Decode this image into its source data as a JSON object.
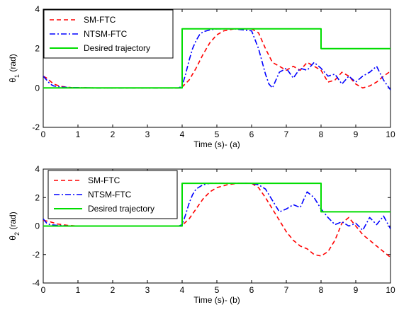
{
  "chart_data": [
    {
      "type": "line",
      "xlabel": "Time (s)- (a)",
      "ylabel": {
        "base": "θ",
        "sub": "1",
        "unit": " (rad)"
      },
      "xlim": [
        0,
        10
      ],
      "ylim": [
        -2,
        4
      ],
      "xticks": [
        0,
        1,
        2,
        3,
        4,
        5,
        6,
        7,
        8,
        9,
        10
      ],
      "yticks": [
        -2,
        0,
        2,
        4
      ],
      "legend": {
        "placement": "top-left"
      },
      "series": [
        {
          "name": "SM-FTC",
          "color": "#ff0000",
          "style": "dashed",
          "x": [
            0,
            0.1,
            0.2,
            0.3,
            0.5,
            0.8,
            1.5,
            2.5,
            3.5,
            3.9,
            4.0,
            4.2,
            4.4,
            4.6,
            4.8,
            5.0,
            5.2,
            5.5,
            6.0,
            6.2,
            6.4,
            6.6,
            6.8,
            7.0,
            7.2,
            7.4,
            7.6,
            7.8,
            8.0,
            8.2,
            8.4,
            8.6,
            8.8,
            9.0,
            9.2,
            9.4,
            9.6,
            9.8,
            10.0
          ],
          "y": [
            0.6,
            0.5,
            0.35,
            0.2,
            0.08,
            0.02,
            0.0,
            0.0,
            0.0,
            0.0,
            0.05,
            0.4,
            1.0,
            1.7,
            2.3,
            2.7,
            2.9,
            3.0,
            3.0,
            2.8,
            2.0,
            1.3,
            1.1,
            0.9,
            1.1,
            0.9,
            1.3,
            1.1,
            0.9,
            0.3,
            0.4,
            0.8,
            0.6,
            0.2,
            0.0,
            0.1,
            0.3,
            0.6,
            0.85
          ]
        },
        {
          "name": "NTSM-FTC",
          "color": "#0000ff",
          "style": "dashdot",
          "x": [
            0,
            0.1,
            0.2,
            0.3,
            0.5,
            0.8,
            1.5,
            2.5,
            3.5,
            3.9,
            4.0,
            4.1,
            4.2,
            4.3,
            4.4,
            4.5,
            4.6,
            4.8,
            5.0,
            5.5,
            6.0,
            6.2,
            6.4,
            6.5,
            6.6,
            6.8,
            7.0,
            7.2,
            7.4,
            7.6,
            7.8,
            8.0,
            8.2,
            8.4,
            8.6,
            8.8,
            9.0,
            9.2,
            9.4,
            9.6,
            9.8,
            10.0
          ],
          "y": [
            0.6,
            0.4,
            0.2,
            0.1,
            0.05,
            0.02,
            0.0,
            0.0,
            0.0,
            0.0,
            0.1,
            0.7,
            1.4,
            2.0,
            2.4,
            2.7,
            2.85,
            2.95,
            3.0,
            3.0,
            2.9,
            2.0,
            0.7,
            0.2,
            0.0,
            0.8,
            1.0,
            0.5,
            1.0,
            0.9,
            1.3,
            1.0,
            0.6,
            0.7,
            0.2,
            0.6,
            0.3,
            0.6,
            0.8,
            1.1,
            0.4,
            -0.1
          ]
        },
        {
          "name": "Desired trajectory",
          "color": "#00dd00",
          "style": "solid",
          "x": [
            0,
            4,
            4,
            8,
            8,
            10
          ],
          "y": [
            0,
            0,
            3,
            3,
            2,
            2
          ]
        }
      ]
    },
    {
      "type": "line",
      "xlabel": "Time (s)- (b)",
      "ylabel": {
        "base": "θ",
        "sub": "2",
        "unit": " (rad)"
      },
      "xlim": [
        0,
        10
      ],
      "ylim": [
        -4,
        4
      ],
      "xticks": [
        0,
        1,
        2,
        3,
        4,
        5,
        6,
        7,
        8,
        9,
        10
      ],
      "yticks": [
        -4,
        -2,
        0,
        2,
        4
      ],
      "legend": {
        "placement": "top-left"
      },
      "series": [
        {
          "name": "SM-FTC",
          "color": "#ff0000",
          "style": "dashed",
          "x": [
            0,
            0.2,
            0.4,
            0.7,
            1.0,
            2.0,
            3.0,
            3.9,
            4.0,
            4.2,
            4.4,
            4.6,
            4.8,
            5.0,
            5.3,
            5.6,
            6.0,
            6.2,
            6.4,
            6.6,
            6.8,
            7.0,
            7.2,
            7.4,
            7.6,
            7.8,
            8.0,
            8.2,
            8.4,
            8.6,
            8.8,
            9.0,
            9.2,
            9.4,
            9.6,
            9.8,
            10.0
          ],
          "y": [
            0.4,
            0.3,
            0.15,
            0.05,
            0.0,
            0.0,
            0.0,
            0.0,
            0.05,
            0.5,
            1.2,
            1.9,
            2.4,
            2.7,
            2.9,
            3.0,
            3.0,
            2.7,
            2.0,
            1.2,
            0.4,
            -0.4,
            -1.0,
            -1.4,
            -1.6,
            -2.0,
            -2.1,
            -1.8,
            -1.0,
            0.2,
            0.6,
            0.0,
            -0.6,
            -1.0,
            -1.4,
            -1.8,
            -2.2
          ]
        },
        {
          "name": "NTSM-FTC",
          "color": "#0000ff",
          "style": "dashdot",
          "x": [
            0,
            0.1,
            0.2,
            0.4,
            0.8,
            1.5,
            2.5,
            3.5,
            3.9,
            4.0,
            4.1,
            4.2,
            4.3,
            4.4,
            4.6,
            4.8,
            5.0,
            5.5,
            6.0,
            6.2,
            6.4,
            6.6,
            6.8,
            7.0,
            7.2,
            7.4,
            7.6,
            7.8,
            8.0,
            8.2,
            8.4,
            8.6,
            8.8,
            9.0,
            9.2,
            9.4,
            9.6,
            9.8,
            10.0
          ],
          "y": [
            0.5,
            0.2,
            0.1,
            0.05,
            0.0,
            0.0,
            0.0,
            0.0,
            0.0,
            0.1,
            0.8,
            1.6,
            2.2,
            2.6,
            2.9,
            3.0,
            3.0,
            3.0,
            3.0,
            2.9,
            2.6,
            1.8,
            1.0,
            1.2,
            1.5,
            1.3,
            2.4,
            2.0,
            1.2,
            0.6,
            0.1,
            0.3,
            0.0,
            0.2,
            -0.3,
            0.6,
            0.1,
            0.7,
            -0.2
          ]
        },
        {
          "name": "Desired trajectory",
          "color": "#00dd00",
          "style": "solid",
          "x": [
            0,
            4,
            4,
            8,
            8,
            10
          ],
          "y": [
            0,
            0,
            3,
            3,
            1,
            1
          ]
        }
      ]
    }
  ]
}
